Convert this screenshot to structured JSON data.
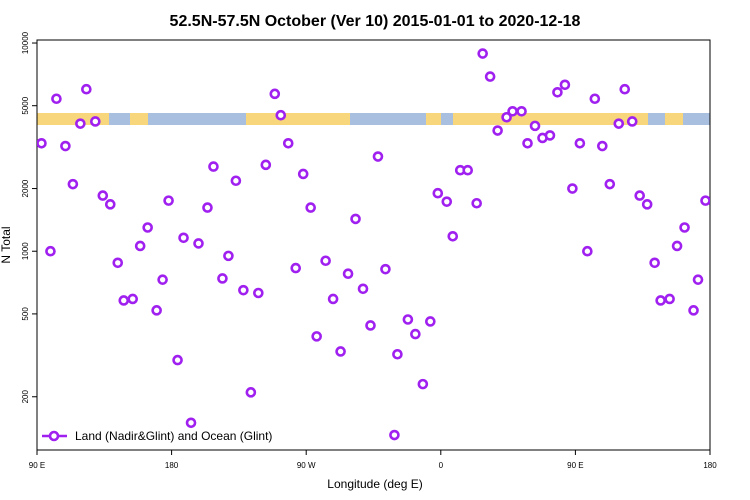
{
  "chart_data": {
    "type": "scatter",
    "title": "52.5N-57.5N October (Ver 10)   2015-01-01 to 2020-12-18",
    "x_label": "Longitude (deg E)",
    "y_label": "N Total",
    "xlim": [
      90,
      540
    ],
    "xticks": [
      {
        "value": 90,
        "label": "90 E"
      },
      180,
      {
        "value": 270,
        "label": "90 W"
      },
      {
        "value": 360,
        "label": "0"
      },
      {
        "value": 450,
        "label": "90 E"
      },
      {
        "value": 540,
        "label": "180"
      }
    ],
    "ylim": [
      111,
      10340
    ],
    "yticks": [
      200,
      500,
      1000,
      2000,
      5000,
      10000
    ],
    "log_y": true,
    "legend": "bottom-left",
    "series": [
      {
        "name": "Land (Nadir&Glint) and Ocean (Glint)",
        "color": "#a020f0",
        "x": [
          93,
          99,
          103,
          109,
          114,
          119,
          123,
          129,
          134,
          139,
          144,
          148,
          154,
          159,
          164,
          170,
          174,
          178,
          184,
          188,
          193,
          198,
          204,
          208,
          214,
          218,
          223,
          228,
          233,
          238,
          243,
          249,
          253,
          258,
          263,
          268,
          273,
          277,
          283,
          288,
          293,
          298,
          303,
          308,
          313,
          318,
          323,
          329,
          331,
          338,
          343,
          348,
          353,
          358,
          364,
          368,
          373,
          378,
          384,
          388,
          393,
          398,
          404,
          408,
          414,
          418,
          423,
          428,
          433,
          438,
          443,
          448,
          453,
          458,
          463,
          468,
          473,
          479,
          483,
          488,
          493,
          498,
          503,
          507,
          513,
          518,
          523,
          529,
          532,
          537
        ],
        "y": [
          3300,
          1000,
          5400,
          3200,
          2100,
          4100,
          6000,
          4200,
          1850,
          1680,
          880,
          580,
          590,
          1060,
          1300,
          520,
          730,
          1750,
          300,
          1160,
          150,
          1090,
          1620,
          2550,
          740,
          950,
          2180,
          650,
          210,
          630,
          2600,
          5700,
          4500,
          3300,
          830,
          2350,
          1620,
          390,
          900,
          590,
          330,
          780,
          1430,
          660,
          440,
          2850,
          820,
          131,
          320,
          470,
          400,
          230,
          460,
          1900,
          1730,
          1180,
          2450,
          2450,
          1700,
          8900,
          6900,
          3800,
          4400,
          4700,
          4700,
          3300,
          4000,
          3500,
          3600,
          5800,
          6300,
          2000,
          3300,
          1000,
          5400,
          3200,
          2100,
          4100,
          6000,
          4200,
          1850,
          1680,
          880,
          580,
          590,
          1060,
          1300,
          520,
          730,
          1750
        ]
      }
    ]
  }
}
